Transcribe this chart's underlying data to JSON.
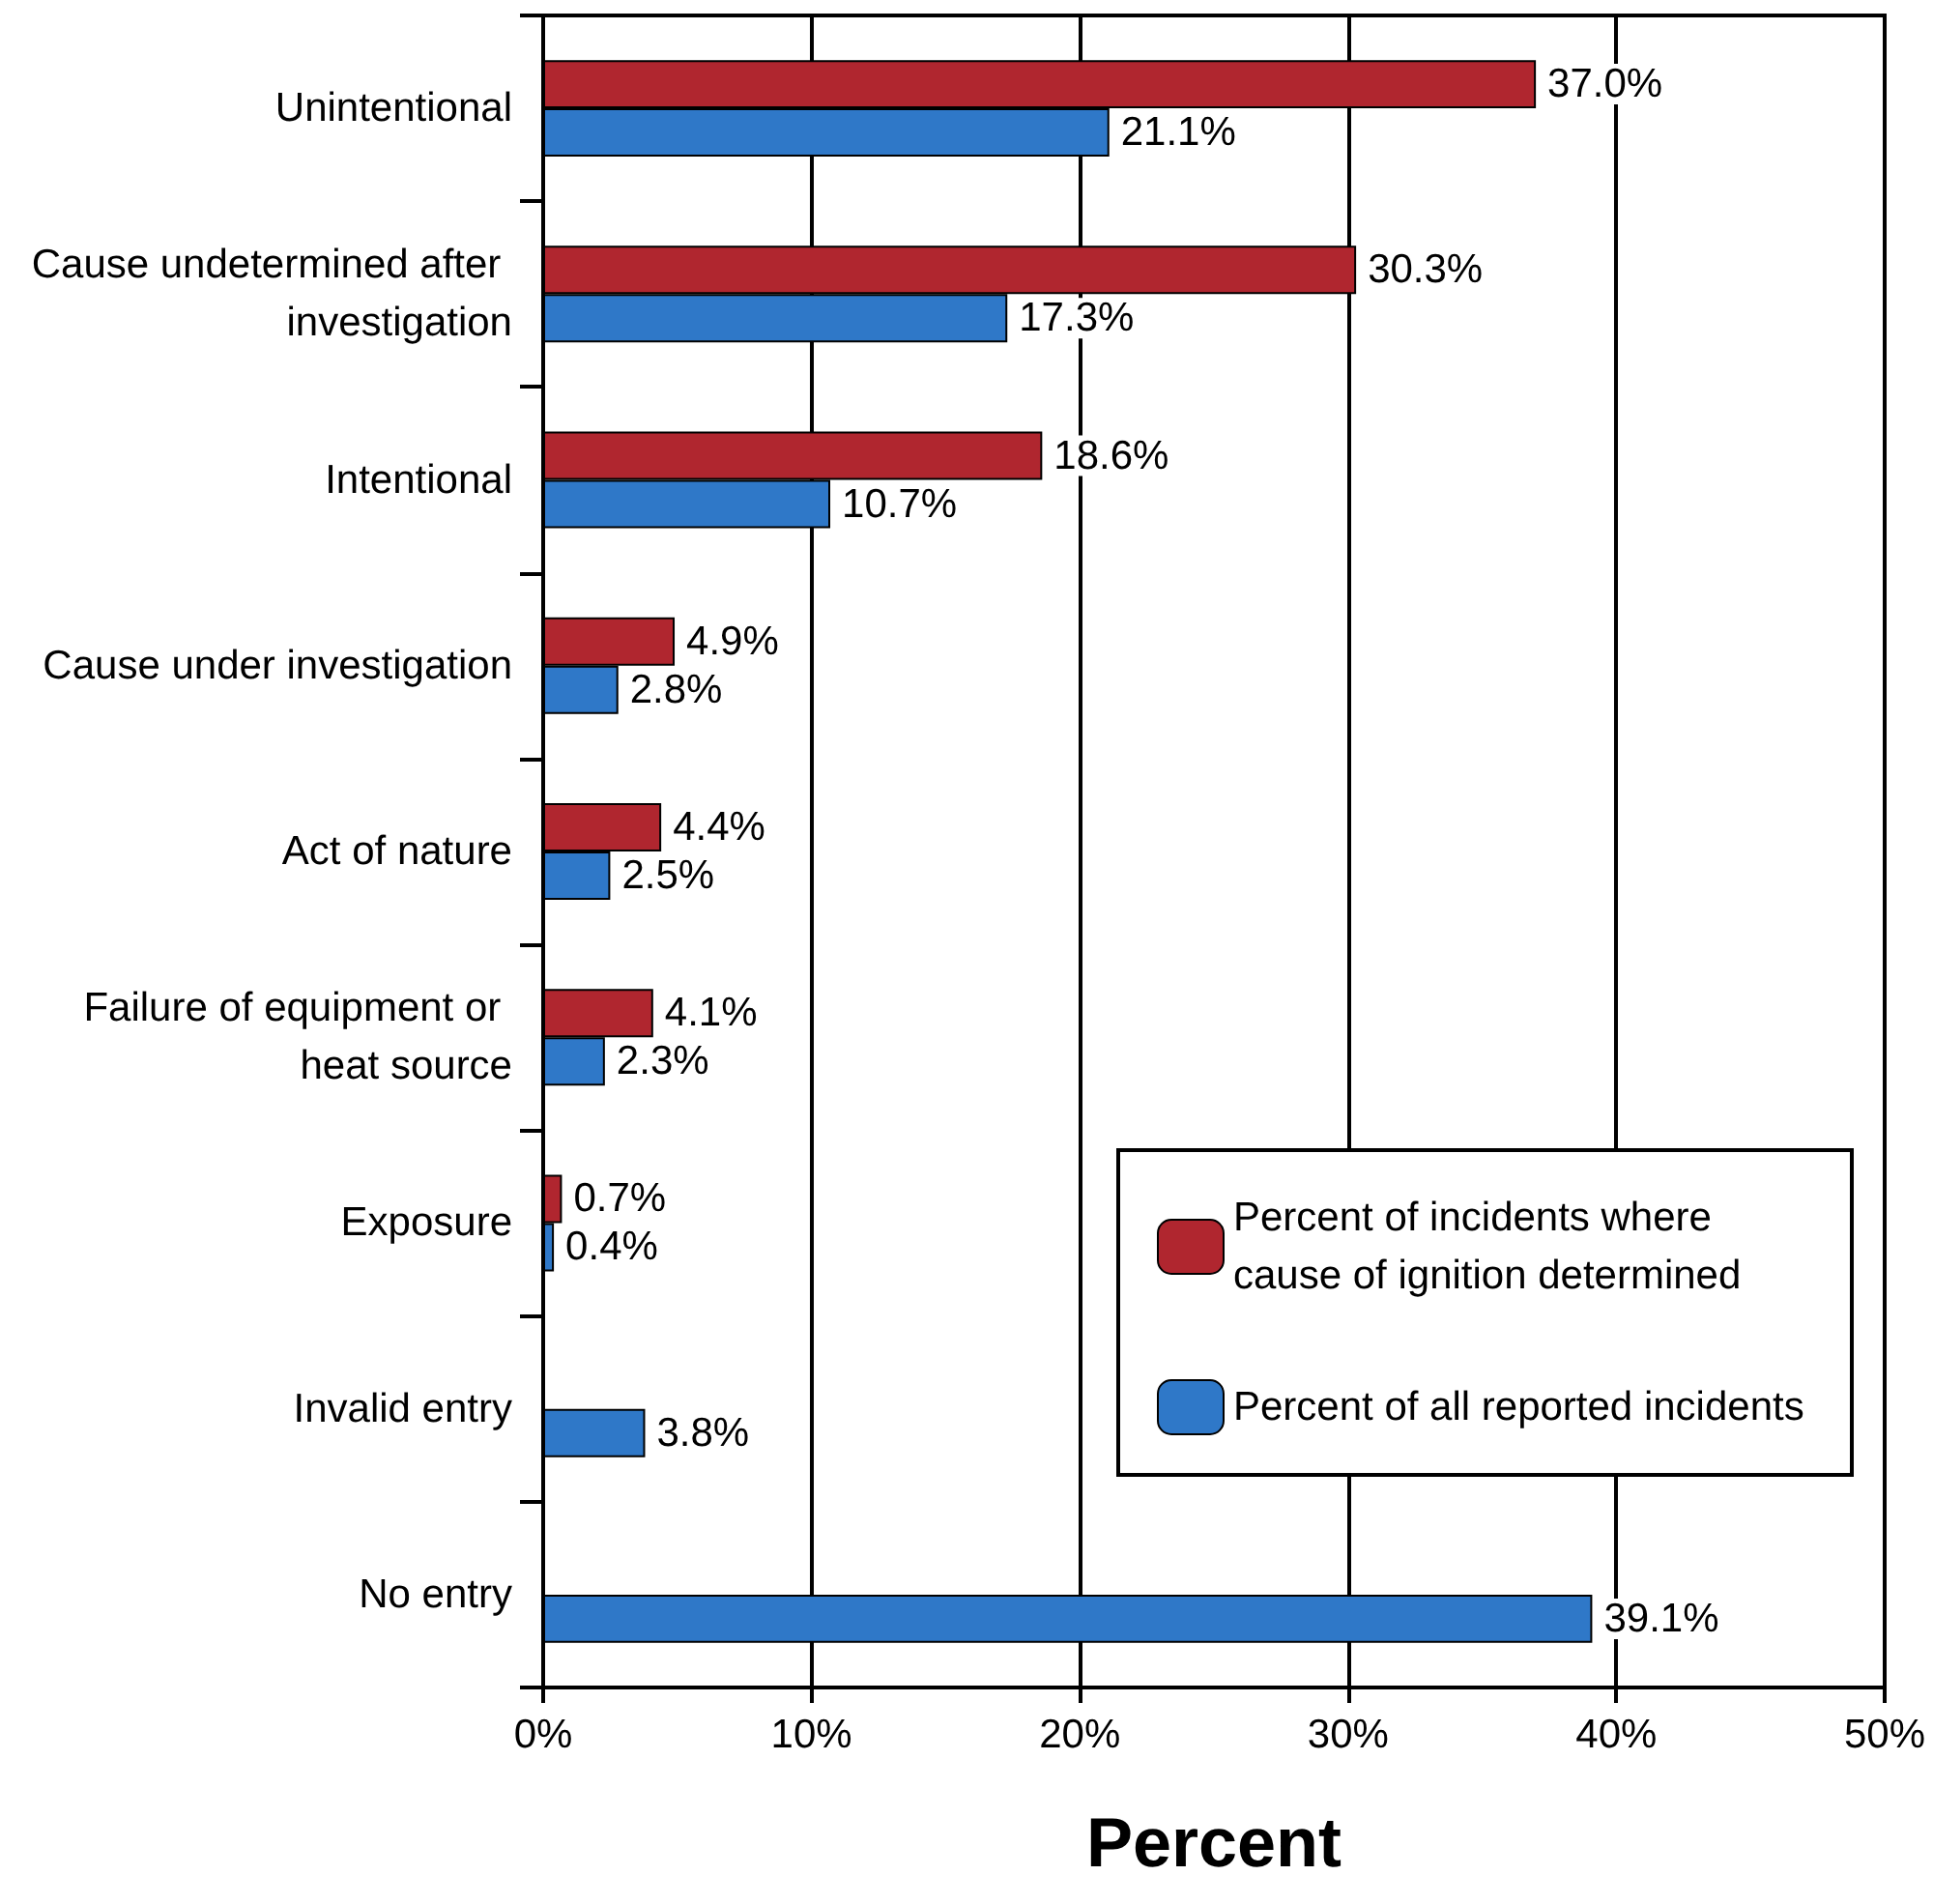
{
  "chart_data": {
    "type": "bar",
    "orientation": "horizontal",
    "xlabel": "Percent",
    "categories": [
      "Unintentional",
      "Cause undetermined after investigation",
      "Intentional",
      "Cause under investigation",
      "Act of nature",
      "Failure of equipment or heat source",
      "Exposure",
      "Invalid entry",
      "No entry"
    ],
    "series": [
      {
        "name": "Percent of incidents where cause of ignition determined",
        "color": "#b0262f",
        "values": [
          37.0,
          30.3,
          18.6,
          4.9,
          4.4,
          4.1,
          0.7,
          null,
          null
        ],
        "value_labels": [
          "37.0%",
          "30.3%",
          "18.6%",
          "4.9%",
          "4.4%",
          "4.1%",
          "0.7%",
          null,
          null
        ]
      },
      {
        "name": "Percent of all reported incidents",
        "color": "#2f78c8",
        "values": [
          21.1,
          17.3,
          10.7,
          2.8,
          2.5,
          2.3,
          0.4,
          3.8,
          39.1
        ],
        "value_labels": [
          "21.1%",
          "17.3%",
          "10.7%",
          "2.8%",
          "2.5%",
          "2.3%",
          "0.4%",
          "3.8%",
          "39.1%"
        ]
      }
    ],
    "xlim": [
      0,
      50
    ],
    "xticks": [
      {
        "value": 0,
        "label": "0%"
      },
      {
        "value": 10,
        "label": "10%"
      },
      {
        "value": 20,
        "label": "20%"
      },
      {
        "value": 30,
        "label": "30%"
      },
      {
        "value": 40,
        "label": "40%"
      },
      {
        "value": 50,
        "label": "50%"
      }
    ],
    "grid": "x",
    "legend": "bottom right"
  }
}
